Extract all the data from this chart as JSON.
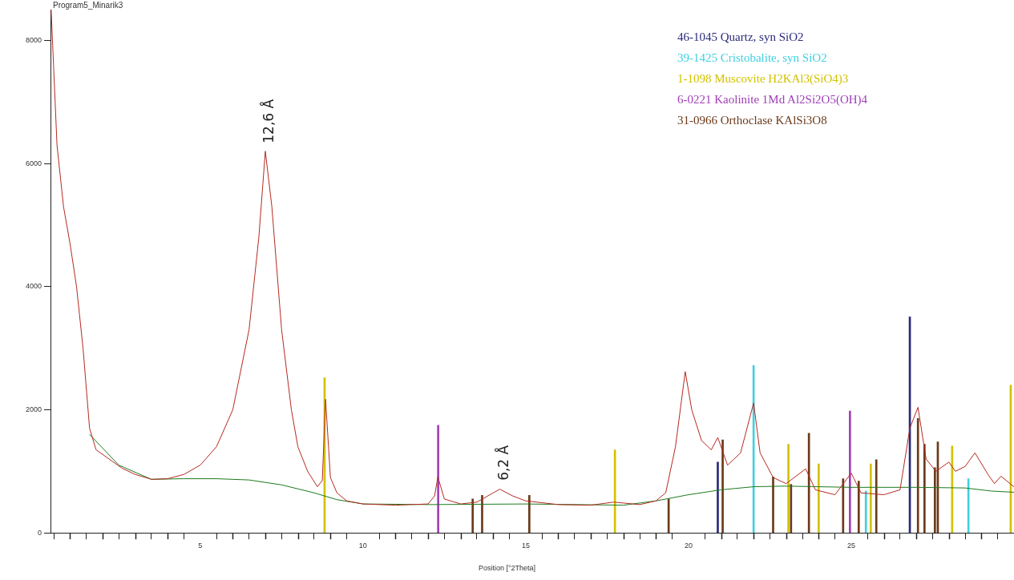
{
  "chart_data": {
    "type": "line",
    "title": "Program5_Minarik3",
    "xlabel": "Position [°2Theta]",
    "xlim": [
      0.4,
      30
    ],
    "ylim": [
      0,
      8500
    ],
    "xticks": [
      {
        "value": 1,
        "label": null
      },
      {
        "value": 2,
        "label": null
      },
      {
        "value": 3,
        "label": null
      },
      {
        "value": 4,
        "label": null
      },
      5,
      {
        "value": 6,
        "label": null
      },
      {
        "value": 7,
        "label": null
      },
      {
        "value": 8,
        "label": null
      },
      {
        "value": 9,
        "label": null
      },
      10,
      {
        "value": 11,
        "label": null
      },
      {
        "value": 12,
        "label": null
      },
      {
        "value": 13,
        "label": null
      },
      {
        "value": 14,
        "label": null
      },
      15,
      {
        "value": 16,
        "label": null
      },
      {
        "value": 17,
        "label": null
      },
      {
        "value": 18,
        "label": null
      },
      {
        "value": 19,
        "label": null
      },
      20,
      {
        "value": 21,
        "label": null
      },
      {
        "value": 22,
        "label": null
      },
      {
        "value": 23,
        "label": null
      },
      {
        "value": 24,
        "label": null
      },
      25,
      {
        "value": 26,
        "label": null
      },
      {
        "value": 27,
        "label": null
      },
      {
        "value": 28,
        "label": null
      },
      {
        "value": 29,
        "label": null
      }
    ],
    "yticks": [
      0,
      2000,
      4000,
      6000,
      8000
    ],
    "grid": false,
    "legend": "top right",
    "marker": "none",
    "annotations": [
      {
        "text": "12,6 Å",
        "x": 7,
        "y": 6200
      },
      {
        "text": "6,2 Å",
        "x": 14.2,
        "y": 720
      }
    ],
    "series": [
      {
        "color": "#b52a22",
        "x": [
          0.42,
          0.6,
          0.8,
          1.0,
          1.2,
          1.4,
          1.6,
          1.8,
          2.2,
          2.6,
          3.0,
          3.5,
          4.0,
          4.5,
          5.0,
          5.5,
          6.0,
          6.5,
          6.8,
          7.0,
          7.2,
          7.5,
          7.8,
          8.0,
          8.3,
          8.6,
          8.75,
          8.85,
          9.0,
          9.2,
          9.5,
          10,
          11,
          12,
          12.2,
          12.3,
          12.5,
          13,
          13.5,
          14.0,
          14.2,
          14.6,
          15,
          16,
          17,
          17.7,
          18.5,
          19,
          19.3,
          19.6,
          19.9,
          20.1,
          20.4,
          20.7,
          20.9,
          21.2,
          21.6,
          22.0,
          22.2,
          22.6,
          23.0,
          23.6,
          23.9,
          24.5,
          25.0,
          25.3,
          26,
          26.5,
          26.8,
          27.05,
          27.3,
          27.6,
          28.0,
          28.2,
          28.5,
          28.8,
          29.2,
          29.4,
          29.6,
          30
        ],
        "values": [
          8500,
          6300,
          5300,
          4700,
          4000,
          3000,
          1700,
          1350,
          1200,
          1050,
          950,
          870,
          880,
          950,
          1100,
          1400,
          2000,
          3300,
          4800,
          6200,
          5300,
          3300,
          2000,
          1400,
          1000,
          750,
          850,
          2170,
          900,
          650,
          520,
          470,
          450,
          470,
          600,
          910,
          550,
          470,
          500,
          650,
          710,
          600,
          520,
          460,
          450,
          500,
          460,
          520,
          650,
          1400,
          2620,
          2000,
          1500,
          1350,
          1550,
          1100,
          1300,
          2110,
          1300,
          900,
          800,
          1040,
          700,
          620,
          970,
          650,
          620,
          700,
          1700,
          2040,
          1200,
          1000,
          1150,
          1000,
          1080,
          1300,
          950,
          800,
          920,
          750
        ]
      },
      {
        "color": "#1e7a1e",
        "x": [
          1.6,
          2.5,
          3.5,
          4.5,
          5.5,
          6.5,
          7.5,
          8.5,
          9.2,
          10,
          12,
          15,
          18,
          19,
          20,
          21,
          22,
          23,
          25,
          27,
          28.5,
          29.3,
          30
        ],
        "values": [
          1600,
          1100,
          870,
          880,
          880,
          860,
          780,
          650,
          540,
          470,
          460,
          470,
          450,
          520,
          620,
          700,
          750,
          760,
          740,
          740,
          730,
          680,
          660
        ]
      },
      {
        "type": "bar",
        "name": "46-1045 Quartz, syn  SiO2",
        "color": "#2a2a7a",
        "x": [
          20.9,
          26.8
        ],
        "values": [
          1150,
          3510
        ]
      },
      {
        "type": "bar",
        "name": "39-1425 Cristobalite, syn  SiO2",
        "color": "#40d0e0",
        "x": [
          22.0,
          25.45,
          28.6
        ],
        "values": [
          2720,
          680,
          880
        ]
      },
      {
        "type": "bar",
        "name": "1-1098 Muscovite H2KAl3(SiO4)3",
        "color": "#d2c200",
        "x": [
          8.82,
          17.74,
          23.07,
          24.0,
          25.6,
          28.1,
          29.9
        ],
        "values": [
          2520,
          1350,
          1440,
          1120,
          1120,
          1410,
          2400
        ]
      },
      {
        "type": "bar",
        "name": "6-0221 Kaolinite 1Md Al2Si2O5(OH)4",
        "color": "#a040b8",
        "x": [
          12.31,
          24.96
        ],
        "values": [
          1750,
          1980
        ]
      },
      {
        "type": "bar",
        "name": "31-0966 Orthoclase KAlSi3O8",
        "color": "#6b3a1a",
        "x": [
          13.37,
          13.66,
          15.11,
          19.39,
          21.05,
          22.6,
          23.15,
          23.7,
          24.75,
          25.23,
          25.77,
          27.05,
          27.25,
          27.57,
          27.66
        ],
        "values": [
          550,
          610,
          610,
          550,
          1510,
          910,
          790,
          1620,
          880,
          840,
          1190,
          1860,
          1440,
          1060,
          1480
        ]
      }
    ]
  }
}
